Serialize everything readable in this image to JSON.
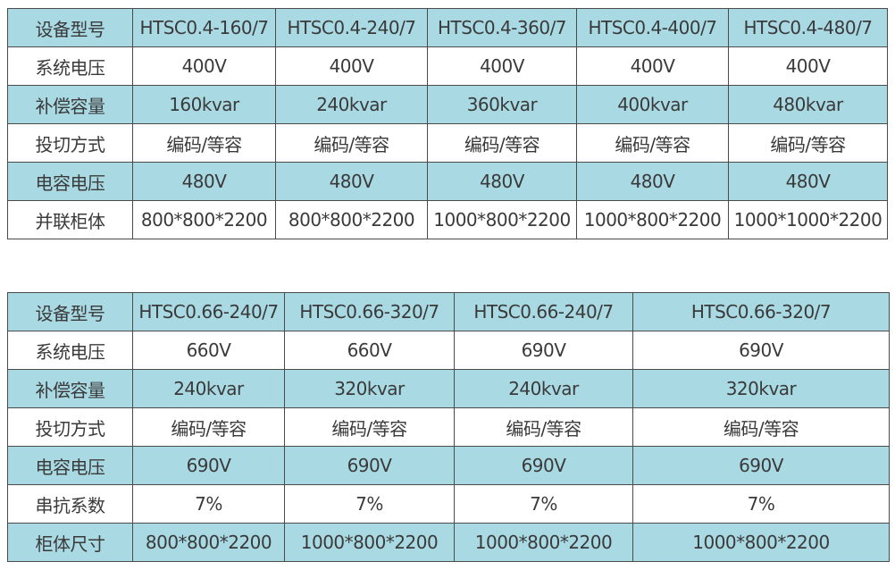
{
  "table1": {
    "rows": [
      [
        "设备型号",
        "HTSC0.4-160/7",
        "HTSC0.4-240/7",
        "HTSC0.4-360/7",
        "HTSC0.4-400/7",
        "HTSC0.4-480/7"
      ],
      [
        "系统电压",
        "400V",
        "400V",
        "400V",
        "400V",
        "400V"
      ],
      [
        "补偿容量",
        "160kvar",
        "240kvar",
        "360kvar",
        "400kvar",
        "480kvar"
      ],
      [
        "投切方式",
        "编码/等容",
        "编码/等容",
        "编码/等容",
        "编码/等容",
        "编码/等容"
      ],
      [
        "电容电压",
        "480V",
        "480V",
        "480V",
        "480V",
        "480V"
      ],
      [
        "并联柜体",
        "800*800*2200",
        "800*800*2200",
        "1000*800*2200",
        "1000*800*2200",
        "1000*1000*2200"
      ]
    ]
  },
  "table2": {
    "rows": [
      [
        "设备型号",
        "HTSC0.66-240/7",
        "HTSC0.66-320/7",
        "HTSC0.66-240/7",
        "HTSC0.66-320/7"
      ],
      [
        "系统电压",
        "660V",
        "660V",
        "690V",
        "690V"
      ],
      [
        "补偿容量",
        "240kvar",
        "320kvar",
        "240kvar",
        "320kvar"
      ],
      [
        "投切方式",
        "编码/等容",
        "编码/等容",
        "编码/等容",
        "编码/等容"
      ],
      [
        "电容电压",
        "690V",
        "690V",
        "690V",
        "690V"
      ],
      [
        "串抗系数",
        "7%",
        "7%",
        "7%",
        "7%"
      ],
      [
        "柜体尺寸",
        "800*800*2200",
        "1000*800*2200",
        "1000*800*2200",
        "1000*800*2200"
      ]
    ]
  },
  "colors": {
    "header_fill": "#a9d9e3",
    "border": "#4a4a4a"
  }
}
